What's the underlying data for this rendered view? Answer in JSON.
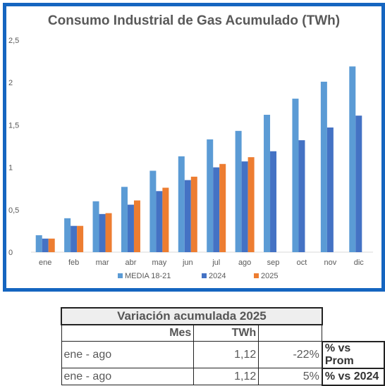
{
  "chart_data": {
    "type": "bar",
    "title": "Consumo Industrial de Gas Acumulado (TWh)",
    "categories": [
      "ene",
      "feb",
      "mar",
      "abr",
      "may",
      "jun",
      "jul",
      "ago",
      "sep",
      "oct",
      "nov",
      "dic"
    ],
    "series": [
      {
        "name": "MEDIA 18-21",
        "color": "#5b9bd5",
        "values": [
          0.2,
          0.4,
          0.6,
          0.77,
          0.96,
          1.13,
          1.33,
          1.43,
          1.62,
          1.81,
          2.01,
          2.19
        ]
      },
      {
        "name": "2024",
        "color": "#4472c4",
        "values": [
          0.16,
          0.31,
          0.45,
          0.56,
          0.72,
          0.85,
          1.0,
          1.07,
          1.19,
          1.32,
          1.47,
          1.61
        ]
      },
      {
        "name": "2025",
        "color": "#ed7d31",
        "values": [
          0.16,
          0.31,
          0.46,
          0.61,
          0.76,
          0.89,
          1.04,
          1.12,
          null,
          null,
          null,
          null
        ]
      }
    ],
    "ylim": [
      0,
      2.5
    ],
    "yticks": [
      "0",
      "0,5",
      "1",
      "1,5",
      "2",
      "2,5"
    ],
    "ytick_values": [
      0,
      0.5,
      1,
      1.5,
      2,
      2.5
    ],
    "grid": false,
    "legend_position": "bottom"
  },
  "table": {
    "title": "Variación acumulada 2025",
    "header": {
      "mes": "Mes",
      "twh": "TWh"
    },
    "rows": [
      {
        "period": "ene - ago",
        "twh": "1,12",
        "pct": "-22%",
        "label": "% vs Prom"
      },
      {
        "period": "ene - ago",
        "twh": "1,12",
        "pct": "5%",
        "label": "% vs 2024"
      }
    ]
  }
}
